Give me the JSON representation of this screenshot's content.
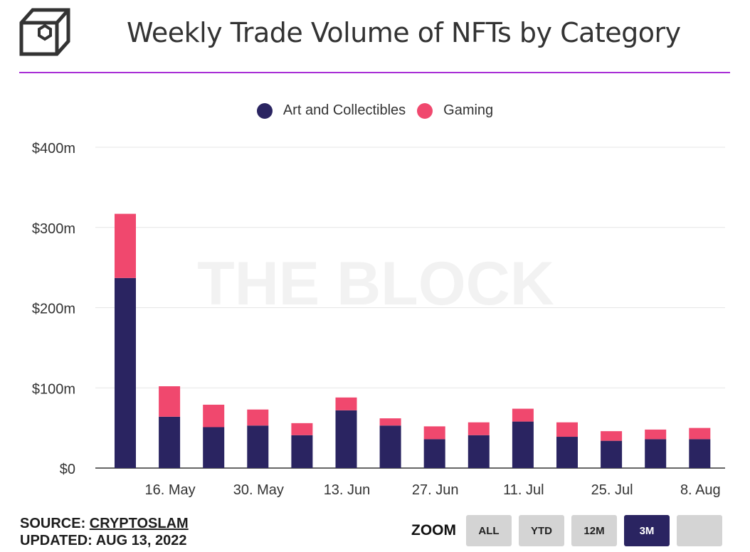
{
  "header": {
    "title": "Weekly Trade Volume of NFTs by Category"
  },
  "watermark": "THE BLOCK",
  "colors": {
    "art": "#2a2461",
    "gaming": "#f0486e",
    "accent": "#a82ed6",
    "grid": "#e6e6e6"
  },
  "chart_data": {
    "type": "bar",
    "stacked": true,
    "title": "Weekly Trade Volume of NFTs by Category",
    "x": [
      "2022-05-09",
      "2022-05-16",
      "2022-05-23",
      "2022-05-30",
      "2022-06-06",
      "2022-06-13",
      "2022-06-20",
      "2022-06-27",
      "2022-07-04",
      "2022-07-11",
      "2022-07-18",
      "2022-07-25",
      "2022-08-01",
      "2022-08-08"
    ],
    "x_tick_labels": [
      "16. May",
      "30. May",
      "13. Jun",
      "27. Jun",
      "11. Jul",
      "25. Jul",
      "8. Aug"
    ],
    "x_tick_dates": [
      "2022-05-16",
      "2022-05-30",
      "2022-06-13",
      "2022-06-27",
      "2022-07-11",
      "2022-07-25",
      "2022-08-08"
    ],
    "series": [
      {
        "name": "Art and Collectibles",
        "color": "#2a2461",
        "values": [
          237,
          64,
          51,
          53,
          41,
          72,
          53,
          36,
          41,
          58,
          39,
          34,
          36,
          36
        ]
      },
      {
        "name": "Gaming",
        "color": "#f0486e",
        "values": [
          80,
          38,
          28,
          20,
          15,
          16,
          9,
          16,
          16,
          16,
          18,
          12,
          12,
          14
        ]
      }
    ],
    "y_tick_labels": [
      "$0",
      "$100m",
      "$200m",
      "$300m",
      "$400m"
    ],
    "y_tick_values": [
      0,
      100,
      200,
      300,
      400
    ],
    "ylim": [
      0,
      400
    ],
    "xlabel": "",
    "ylabel": "",
    "grid": true,
    "legend": "top-center"
  },
  "footer": {
    "source_label": "SOURCE:",
    "source_value": "CRYPTOSLAM",
    "updated_label": "UPDATED:",
    "updated_value": "AUG 13, 2022"
  },
  "zoom": {
    "label": "ZOOM",
    "buttons": [
      "ALL",
      "YTD",
      "12M",
      "3M",
      ""
    ],
    "active": "3M"
  }
}
